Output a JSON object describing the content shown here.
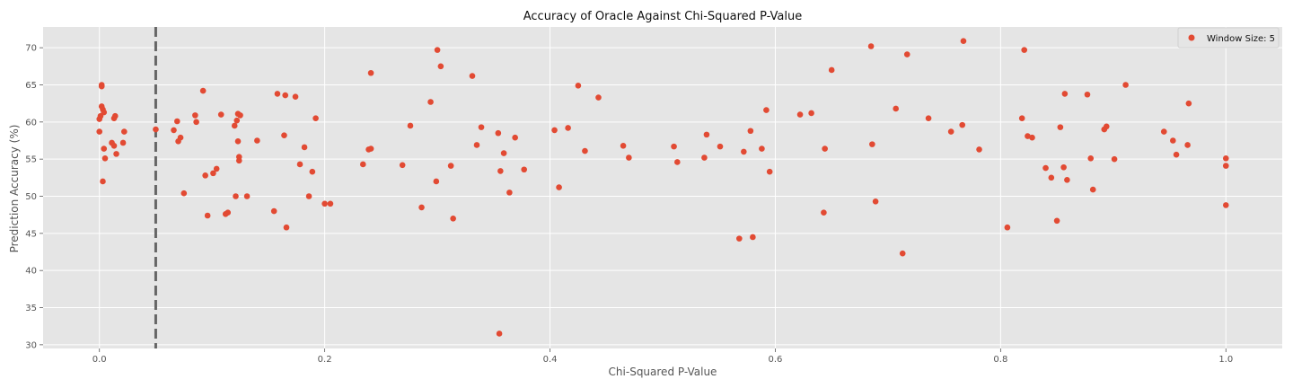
{
  "chart_data": {
    "type": "scatter",
    "title": "Accuracy of Oracle Against Chi-Squared P-Value",
    "xlabel": "Chi-Squared P-Value",
    "ylabel": "Prediction Accuracy (%)",
    "xlim": [
      -0.05,
      1.05
    ],
    "ylim": [
      29.5,
      72.8
    ],
    "xticks": [
      0.0,
      0.2,
      0.4,
      0.6,
      0.8,
      1.0
    ],
    "xtick_labels": [
      "0.0",
      "0.2",
      "0.4",
      "0.6",
      "0.8",
      "1.0"
    ],
    "yticks": [
      30,
      35,
      40,
      45,
      50,
      55,
      60,
      65,
      70
    ],
    "ytick_labels": [
      "30",
      "35",
      "40",
      "45",
      "50",
      "55",
      "60",
      "65",
      "70"
    ],
    "grid": true,
    "legend_position": "top-right",
    "reference_line": {
      "x": 0.05,
      "style": "dashed",
      "color": "#666666"
    },
    "series": [
      {
        "name": "Window Size: 5",
        "color": "#e24a33",
        "points": [
          [
            0.0,
            58.7
          ],
          [
            0.0,
            60.4
          ],
          [
            0.001,
            60.8
          ],
          [
            0.002,
            62.1
          ],
          [
            0.002,
            64.8
          ],
          [
            0.002,
            65.0
          ],
          [
            0.003,
            61.7
          ],
          [
            0.004,
            56.4
          ],
          [
            0.003,
            52.0
          ],
          [
            0.004,
            61.3
          ],
          [
            0.005,
            55.1
          ],
          [
            0.011,
            57.2
          ],
          [
            0.013,
            56.8
          ],
          [
            0.013,
            60.5
          ],
          [
            0.014,
            60.8
          ],
          [
            0.015,
            55.7
          ],
          [
            0.021,
            57.2
          ],
          [
            0.022,
            58.7
          ],
          [
            0.05,
            59.0
          ],
          [
            0.066,
            58.9
          ],
          [
            0.069,
            60.1
          ],
          [
            0.07,
            57.4
          ],
          [
            0.072,
            57.9
          ],
          [
            0.075,
            50.4
          ],
          [
            0.085,
            60.9
          ],
          [
            0.086,
            60.0
          ],
          [
            0.092,
            64.2
          ],
          [
            0.094,
            52.8
          ],
          [
            0.096,
            47.4
          ],
          [
            0.101,
            53.1
          ],
          [
            0.104,
            53.7
          ],
          [
            0.108,
            61.0
          ],
          [
            0.112,
            47.6
          ],
          [
            0.114,
            47.8
          ],
          [
            0.12,
            59.5
          ],
          [
            0.121,
            50.0
          ],
          [
            0.122,
            60.2
          ],
          [
            0.123,
            57.4
          ],
          [
            0.123,
            61.1
          ],
          [
            0.124,
            55.3
          ],
          [
            0.124,
            54.8
          ],
          [
            0.125,
            60.9
          ],
          [
            0.131,
            50.0
          ],
          [
            0.14,
            57.5
          ],
          [
            0.155,
            48.0
          ],
          [
            0.158,
            63.8
          ],
          [
            0.164,
            58.2
          ],
          [
            0.165,
            63.6
          ],
          [
            0.166,
            45.8
          ],
          [
            0.174,
            63.4
          ],
          [
            0.178,
            54.3
          ],
          [
            0.182,
            56.6
          ],
          [
            0.186,
            50.0
          ],
          [
            0.189,
            53.3
          ],
          [
            0.192,
            60.5
          ],
          [
            0.2,
            49.0
          ],
          [
            0.205,
            49.0
          ],
          [
            0.234,
            54.3
          ],
          [
            0.239,
            56.3
          ],
          [
            0.241,
            56.4
          ],
          [
            0.241,
            66.6
          ],
          [
            0.269,
            54.2
          ],
          [
            0.276,
            59.5
          ],
          [
            0.286,
            48.5
          ],
          [
            0.294,
            62.7
          ],
          [
            0.299,
            52.0
          ],
          [
            0.3,
            69.7
          ],
          [
            0.303,
            67.5
          ],
          [
            0.312,
            54.1
          ],
          [
            0.314,
            47.0
          ],
          [
            0.331,
            66.2
          ],
          [
            0.335,
            56.9
          ],
          [
            0.339,
            59.3
          ],
          [
            0.354,
            58.5
          ],
          [
            0.355,
            31.5
          ],
          [
            0.356,
            53.4
          ],
          [
            0.359,
            55.8
          ],
          [
            0.364,
            50.5
          ],
          [
            0.369,
            57.9
          ],
          [
            0.377,
            53.6
          ],
          [
            0.404,
            58.9
          ],
          [
            0.408,
            51.2
          ],
          [
            0.416,
            59.2
          ],
          [
            0.425,
            64.9
          ],
          [
            0.431,
            56.1
          ],
          [
            0.443,
            63.3
          ],
          [
            0.465,
            56.8
          ],
          [
            0.47,
            55.2
          ],
          [
            0.51,
            56.7
          ],
          [
            0.513,
            54.6
          ],
          [
            0.537,
            55.2
          ],
          [
            0.539,
            58.3
          ],
          [
            0.551,
            56.7
          ],
          [
            0.568,
            44.3
          ],
          [
            0.572,
            56.0
          ],
          [
            0.578,
            58.8
          ],
          [
            0.58,
            44.5
          ],
          [
            0.588,
            56.4
          ],
          [
            0.592,
            61.6
          ],
          [
            0.595,
            53.3
          ],
          [
            0.622,
            61.0
          ],
          [
            0.632,
            61.2
          ],
          [
            0.643,
            47.8
          ],
          [
            0.644,
            56.4
          ],
          [
            0.65,
            67.0
          ],
          [
            0.685,
            70.2
          ],
          [
            0.686,
            57.0
          ],
          [
            0.689,
            49.3
          ],
          [
            0.707,
            61.8
          ],
          [
            0.713,
            42.3
          ],
          [
            0.717,
            69.1
          ],
          [
            0.736,
            60.5
          ],
          [
            0.756,
            58.7
          ],
          [
            0.766,
            59.6
          ],
          [
            0.767,
            70.9
          ],
          [
            0.781,
            56.3
          ],
          [
            0.806,
            45.8
          ],
          [
            0.819,
            60.5
          ],
          [
            0.821,
            69.7
          ],
          [
            0.824,
            58.1
          ],
          [
            0.828,
            57.9
          ],
          [
            0.84,
            53.8
          ],
          [
            0.845,
            52.5
          ],
          [
            0.85,
            46.7
          ],
          [
            0.853,
            59.3
          ],
          [
            0.856,
            53.9
          ],
          [
            0.857,
            63.8
          ],
          [
            0.859,
            52.2
          ],
          [
            0.877,
            63.7
          ],
          [
            0.88,
            55.1
          ],
          [
            0.882,
            50.9
          ],
          [
            0.892,
            59.0
          ],
          [
            0.894,
            59.4
          ],
          [
            0.901,
            55.0
          ],
          [
            0.911,
            65.0
          ],
          [
            0.945,
            58.7
          ],
          [
            0.953,
            57.5
          ],
          [
            0.956,
            55.6
          ],
          [
            0.966,
            56.9
          ],
          [
            0.967,
            62.5
          ],
          [
            1.0,
            55.1
          ],
          [
            1.0,
            54.1
          ],
          [
            1.0,
            48.8
          ]
        ]
      }
    ]
  }
}
